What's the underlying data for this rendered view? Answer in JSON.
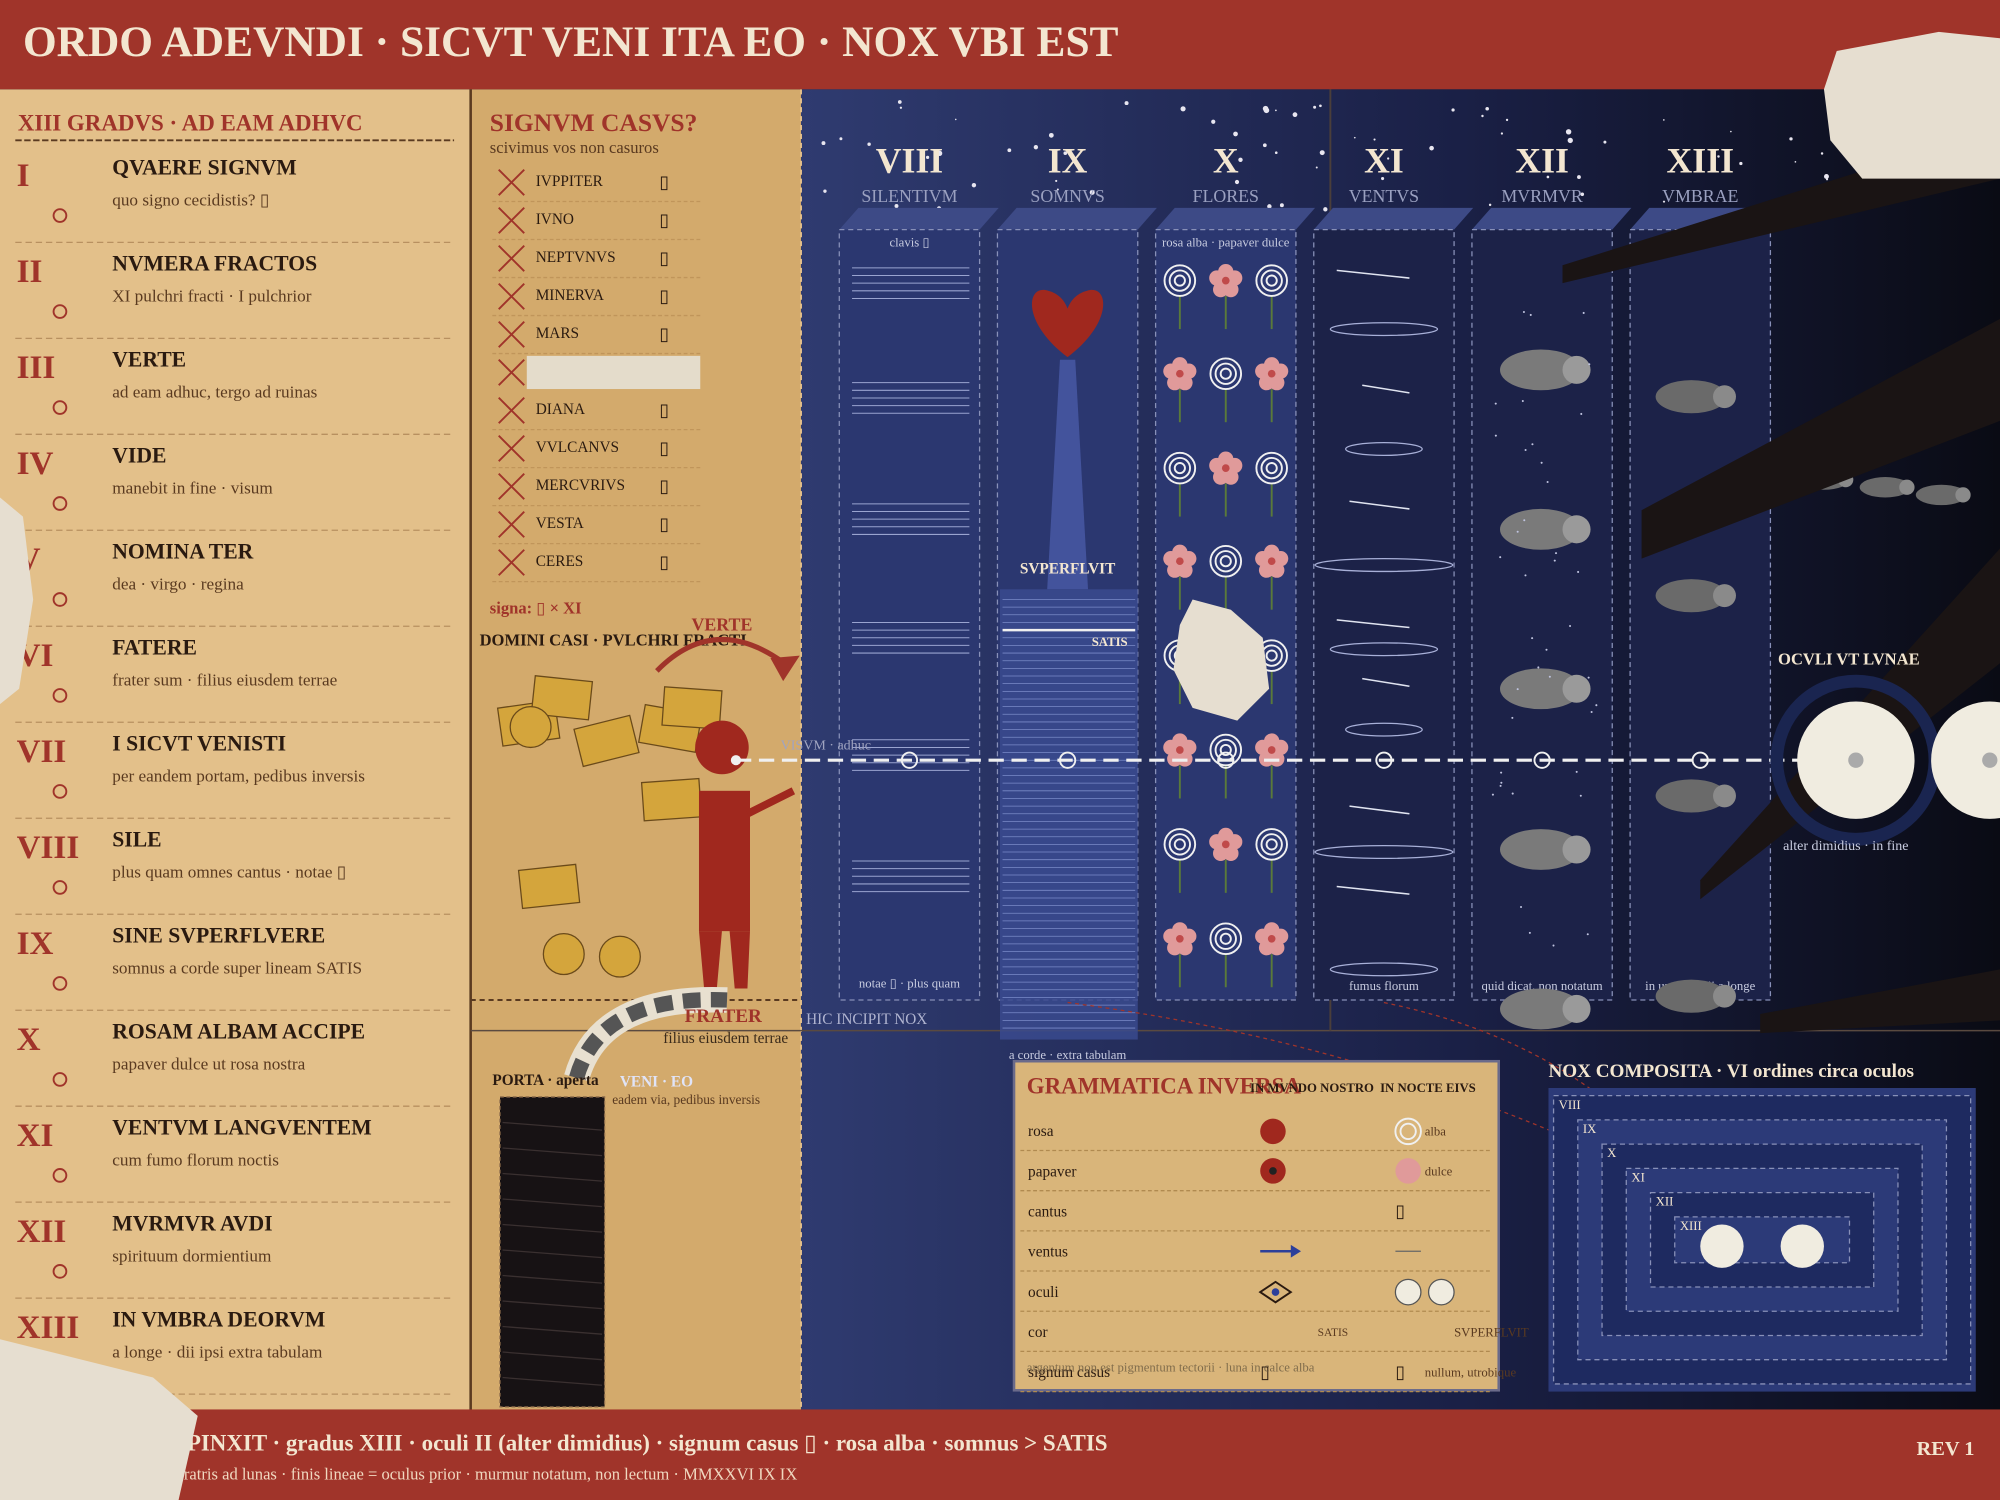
{
  "header": {
    "title": "ORDO ADEVNDI · SICVT VENI ITA EO · NOX VBI EST"
  },
  "steps": {
    "title": "XIII GRADVS · AD EAM ADHVC",
    "items": [
      {
        "numeral": "I",
        "title": "QVAERE SIGNVM",
        "subtitle": "quo signo cecidistis? ▯"
      },
      {
        "numeral": "II",
        "title": "NVMERA FRACTOS",
        "subtitle": "XI pulchri fracti · I pulchrior"
      },
      {
        "numeral": "III",
        "title": "VERTE",
        "subtitle": "ad eam adhuc, tergo ad ruinas"
      },
      {
        "numeral": "IV",
        "title": "VIDE",
        "subtitle": "manebit in fine · visum"
      },
      {
        "numeral": "V",
        "title": "NOMINA TER",
        "subtitle": "dea · virgo · regina"
      },
      {
        "numeral": "VI",
        "title": "FATERE",
        "subtitle": "frater sum · filius eiusdem terrae"
      },
      {
        "numeral": "VII",
        "title": "I SICVT VENISTI",
        "subtitle": "per eandem portam, pedibus inversis"
      },
      {
        "numeral": "VIII",
        "title": "SILE",
        "subtitle": "plus quam omnes cantus · notae ▯"
      },
      {
        "numeral": "IX",
        "title": "SINE SVPERFLVERE",
        "subtitle": "somnus a corde super lineam SATIS"
      },
      {
        "numeral": "X",
        "title": "ROSAM ALBAM ACCIPE",
        "subtitle": "papaver dulce ut rosa nostra"
      },
      {
        "numeral": "XI",
        "title": "VENTVM LANGVENTEM",
        "subtitle": "cum fumo florum noctis"
      },
      {
        "numeral": "XII",
        "title": "MVRMVR AVDI",
        "subtitle": "spirituum dormientium"
      },
      {
        "numeral": "XIII",
        "title": "IN VMBRA DEORVM",
        "subtitle": "a longe · dii ipsi extra tabulam"
      }
    ]
  },
  "signum": {
    "title": "SIGNVM CASVS?",
    "subtitle": "scivimus vos non casuros",
    "gods": [
      "IVPPITER",
      "IVNO",
      "NEPTVNVS",
      "MINERVA",
      "MARS",
      "DIANA",
      "VVLCANVS",
      "MERCVRIVS",
      "VESTA",
      "CERES"
    ],
    "glyph": "▯",
    "signa": "signa: ▯ × XI"
  },
  "scene": {
    "domini": "DOMINI CASI · PVLCHRI FRACTI",
    "verte": "VERTE",
    "frater": "FRATER",
    "frater_note": "filius eiusdem terrae",
    "porta": "PORTA · aperta",
    "veni": "VENI · EO",
    "porta_note": "eadem via, pedibus inversis",
    "hic": "HIC INCIPIT NOX"
  },
  "night": {
    "columns": [
      {
        "numeral": "VIII",
        "name": "SILENTIVM",
        "top": "clavis ▯",
        "bottom": "notae ▯ · plus quam"
      },
      {
        "numeral": "IX",
        "name": "SOMNVS",
        "bottom": "a corde · extra tabulam"
      },
      {
        "numeral": "X",
        "name": "FLORES",
        "top": "rosa alba · papaver dulce"
      },
      {
        "numeral": "XI",
        "name": "VENTVS",
        "bottom": "fumus florum"
      },
      {
        "numeral": "XII",
        "name": "MVRMVR",
        "bottom": "quid dicat, non notatum"
      },
      {
        "numeral": "XIII",
        "name": "VMBRAE",
        "bottom": "in umbra · dii a longe"
      }
    ],
    "superfluit": "SVPERFLVIT",
    "satis": "SATIS",
    "visum": "VISVM · adhuc",
    "oculi": "OCVLI VT LVNAE",
    "oculi_note": "alter dimidius · in fine"
  },
  "grammatica": {
    "title": "GRAMMATICA INVERSA",
    "headers": [
      "IN MVNDO NOSTRO",
      "IN NOCTE EIVS"
    ],
    "rows": [
      {
        "label": "rosa",
        "night": "alba"
      },
      {
        "label": "papaver",
        "night": "dulce"
      },
      {
        "label": "cantus",
        "night": "▯"
      },
      {
        "label": "ventus"
      },
      {
        "label": "oculi"
      },
      {
        "label": "cor",
        "world": "SATIS",
        "night": "SVPERFLVIT"
      },
      {
        "label": "signum casus",
        "world": "▯",
        "night_glyph": "▯",
        "night": "nullum, utrobique"
      }
    ],
    "note": "argentum non est pigmentum tectorii · luna in calce alba"
  },
  "nox": {
    "title": "NOX COMPOSITA · VI ordines circa oculos",
    "rings": [
      "VIII",
      "IX",
      "X",
      "XI",
      "XII",
      "XIII"
    ]
  },
  "footer": {
    "line1": "A PINXIT · gradus XIII · oculi II (alter dimidius) · signum casus ▯ · rosa alba · somnus > SATIS",
    "line2": "illa fratris ad lunas · finis lineae = oculus prior · murmur notatum, non lectum · MMXXVI IX IX",
    "rev": "REV 1"
  }
}
